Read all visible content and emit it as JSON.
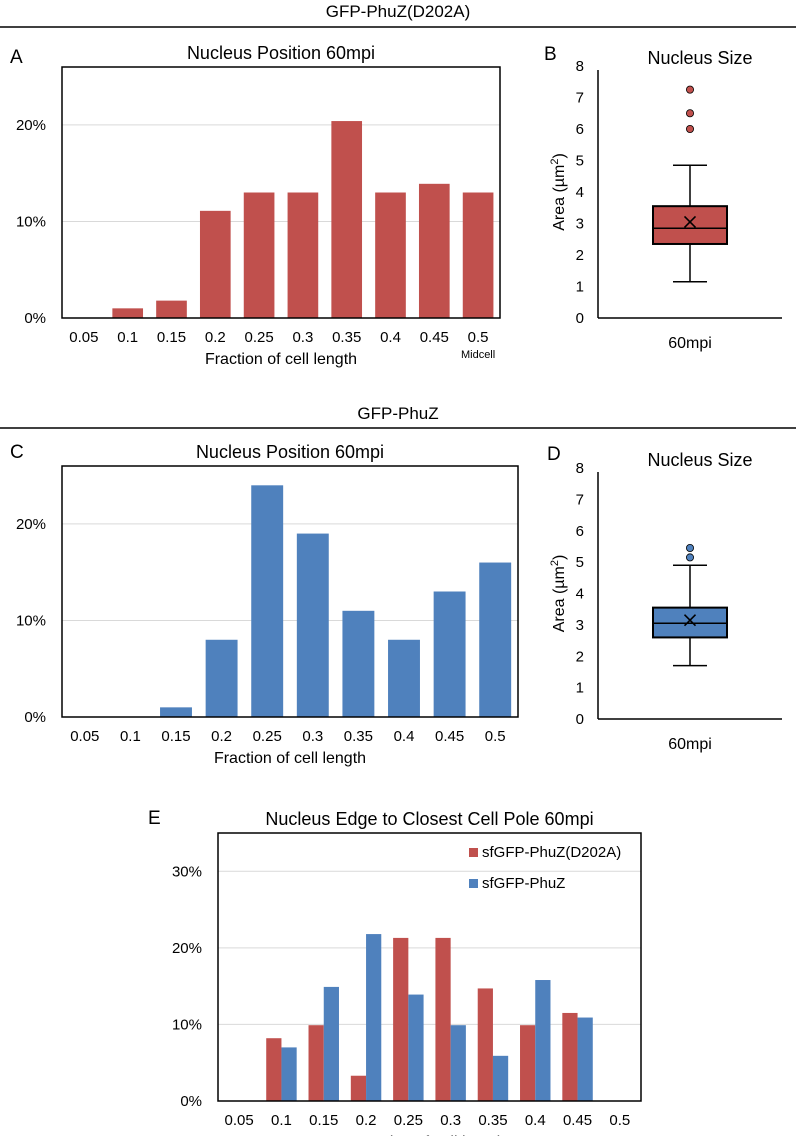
{
  "colors": {
    "red": "#c0504d",
    "blue": "#4f81bd",
    "grid": "#d9d9d9",
    "frame": "#000000"
  },
  "sections": [
    {
      "title": "GFP-PhuZ(D202A)"
    },
    {
      "title": "GFP-PhuZ"
    }
  ],
  "chart_data": [
    {
      "id": "A",
      "type": "bar",
      "title": "Nucleus Position 60mpi",
      "xlabel": "Fraction of cell length",
      "ylabel": "",
      "categories": [
        "0.05",
        "0.1",
        "0.15",
        "0.2",
        "0.25",
        "0.3",
        "0.35",
        "0.4",
        "0.45",
        "0.5"
      ],
      "category_note": "Midcell",
      "values": [
        0,
        1,
        1.8,
        11.1,
        13,
        13,
        20.4,
        13,
        13.9,
        13
      ],
      "ylim": [
        0,
        26
      ],
      "yticks": [
        "0%",
        "10%",
        "20%"
      ],
      "ytick_values": [
        0,
        10,
        20
      ],
      "grid": true,
      "color": "#c0504d"
    },
    {
      "id": "B",
      "type": "box",
      "title": "Nucleus Size",
      "ylabel": "Area (µm²)",
      "ylabel_main": "Area (µm",
      "ylabel_sup": "2",
      "ylabel_end": ")",
      "category": "60mpi",
      "min": 1.15,
      "q1": 2.35,
      "median": 2.85,
      "mean": 3.05,
      "q3": 3.55,
      "max": 4.85,
      "outliers": [
        6.0,
        6.5,
        7.25
      ],
      "ylim": [
        0,
        8
      ],
      "yticks": [
        "0",
        "1",
        "2",
        "3",
        "4",
        "5",
        "6",
        "7",
        "8"
      ],
      "grid": false,
      "color": "#c0504d"
    },
    {
      "id": "C",
      "type": "bar",
      "title": "Nucleus Position 60mpi",
      "xlabel": "Fraction of cell length",
      "ylabel": "",
      "categories": [
        "0.05",
        "0.1",
        "0.15",
        "0.2",
        "0.25",
        "0.3",
        "0.35",
        "0.4",
        "0.45",
        "0.5"
      ],
      "values": [
        0,
        0,
        1,
        8,
        24,
        19,
        11,
        8,
        13,
        16
      ],
      "ylim": [
        0,
        26
      ],
      "yticks": [
        "0%",
        "10%",
        "20%"
      ],
      "ytick_values": [
        0,
        10,
        20
      ],
      "grid": true,
      "color": "#4f81bd"
    },
    {
      "id": "D",
      "type": "box",
      "title": "Nucleus Size",
      "ylabel": "Area (µm²)",
      "ylabel_main": "Area (µm",
      "ylabel_sup": "2",
      "ylabel_end": ")",
      "category": "60mpi",
      "min": 1.7,
      "q1": 2.6,
      "median": 3.05,
      "mean": 3.15,
      "q3": 3.55,
      "max": 4.9,
      "outliers": [
        5.15,
        5.45
      ],
      "ylim": [
        0,
        8
      ],
      "yticks": [
        "0",
        "1",
        "2",
        "3",
        "4",
        "5",
        "6",
        "7",
        "8"
      ],
      "grid": false,
      "color": "#4f81bd"
    },
    {
      "id": "E",
      "type": "bar",
      "title": "Nucleus Edge to Closest Cell Pole 60mpi",
      "xlabel": "Fraction of cell length",
      "ylabel": "",
      "categories": [
        "0.05",
        "0.1",
        "0.15",
        "0.2",
        "0.25",
        "0.3",
        "0.35",
        "0.4",
        "0.45",
        "0.5"
      ],
      "series": [
        {
          "name": "sfGFP-PhuZ(D202A)",
          "color": "#c0504d",
          "values": [
            0,
            8.2,
            9.9,
            3.3,
            21.3,
            21.3,
            14.7,
            9.9,
            11.5,
            0
          ]
        },
        {
          "name": "sfGFP-PhuZ",
          "color": "#4f81bd",
          "values": [
            0,
            7,
            14.9,
            21.8,
            13.9,
            9.9,
            5.9,
            15.8,
            10.9,
            0
          ]
        }
      ],
      "ylim": [
        0,
        35
      ],
      "yticks": [
        "0%",
        "10%",
        "20%",
        "30%"
      ],
      "ytick_values": [
        0,
        10,
        20,
        30
      ],
      "legend": "top-right",
      "grid": true
    }
  ]
}
